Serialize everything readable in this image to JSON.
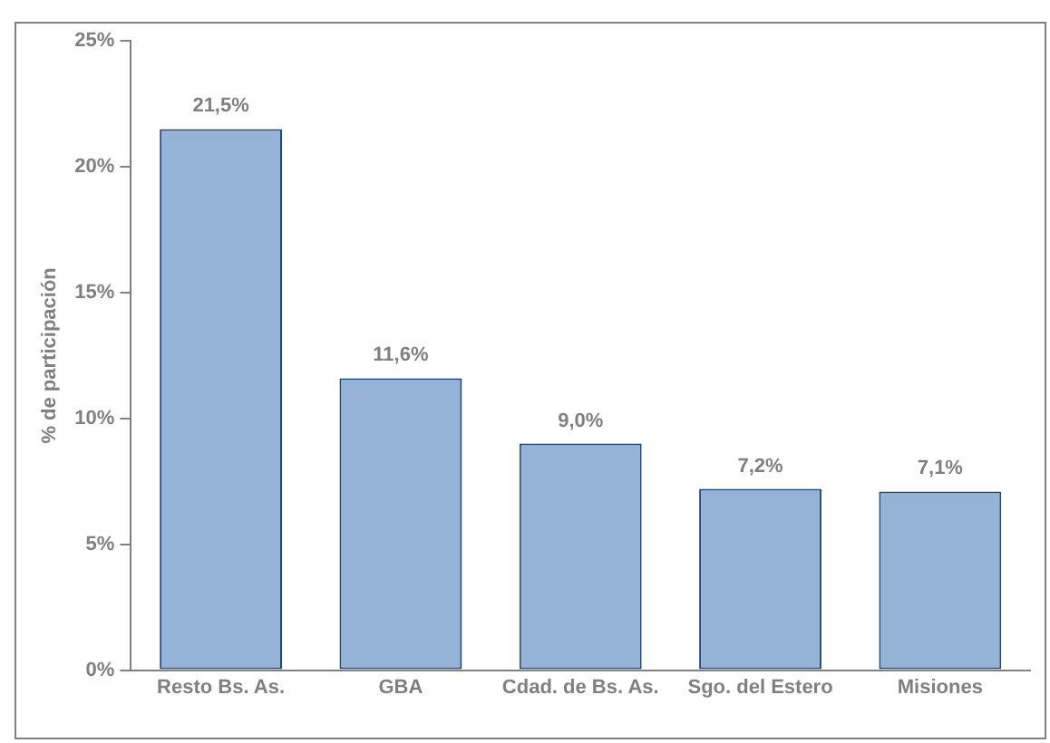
{
  "chart_data": {
    "type": "bar",
    "ylabel": "% de participación",
    "categories": [
      "Resto Bs. As.",
      "GBA",
      "Cdad. de Bs. As.",
      "Sgo. del Estero",
      "Misiones"
    ],
    "values": [
      21.5,
      11.6,
      9.0,
      7.2,
      7.1
    ],
    "color": "#95b3d7",
    "value_labels": [
      "21,5%",
      "11,6%",
      "9,0%",
      "7,2%",
      "7,1%"
    ],
    "ylim": [
      0,
      25
    ],
    "yticks": [
      {
        "value": 0,
        "label": "0%"
      },
      {
        "value": 5,
        "label": "5%"
      },
      {
        "value": 10,
        "label": "10%"
      },
      {
        "value": 15,
        "label": "15%"
      },
      {
        "value": 20,
        "label": "20%"
      },
      {
        "value": 25,
        "label": "25%"
      }
    ],
    "grid": false,
    "legend": false
  }
}
